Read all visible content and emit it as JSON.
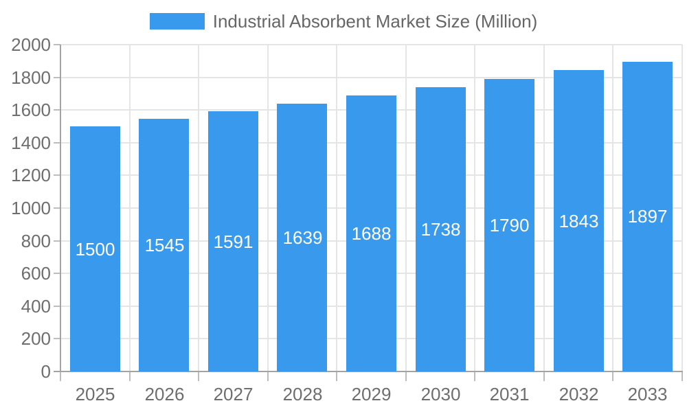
{
  "chart_data": {
    "type": "bar",
    "title": "Industrial Absorbent Market Size (Million)",
    "categories": [
      "2025",
      "2026",
      "2027",
      "2028",
      "2029",
      "2030",
      "2031",
      "2032",
      "2033"
    ],
    "values": [
      1500,
      1545,
      1591,
      1639,
      1688,
      1738,
      1790,
      1843,
      1897
    ],
    "yticks": [
      0,
      200,
      400,
      600,
      800,
      1000,
      1200,
      1400,
      1600,
      1800,
      2000
    ],
    "ylim": [
      0,
      2000
    ],
    "legend_position": "top",
    "grid": true,
    "colors": {
      "bar": "#3999EC",
      "bar_label": "#ffffff",
      "legend_text": "#666666",
      "axis_text": "#6e6e6e",
      "gridline": "#e5e5e5",
      "axis_line": "#a3a3a3",
      "tick_mark": "#bdbdbd"
    }
  }
}
